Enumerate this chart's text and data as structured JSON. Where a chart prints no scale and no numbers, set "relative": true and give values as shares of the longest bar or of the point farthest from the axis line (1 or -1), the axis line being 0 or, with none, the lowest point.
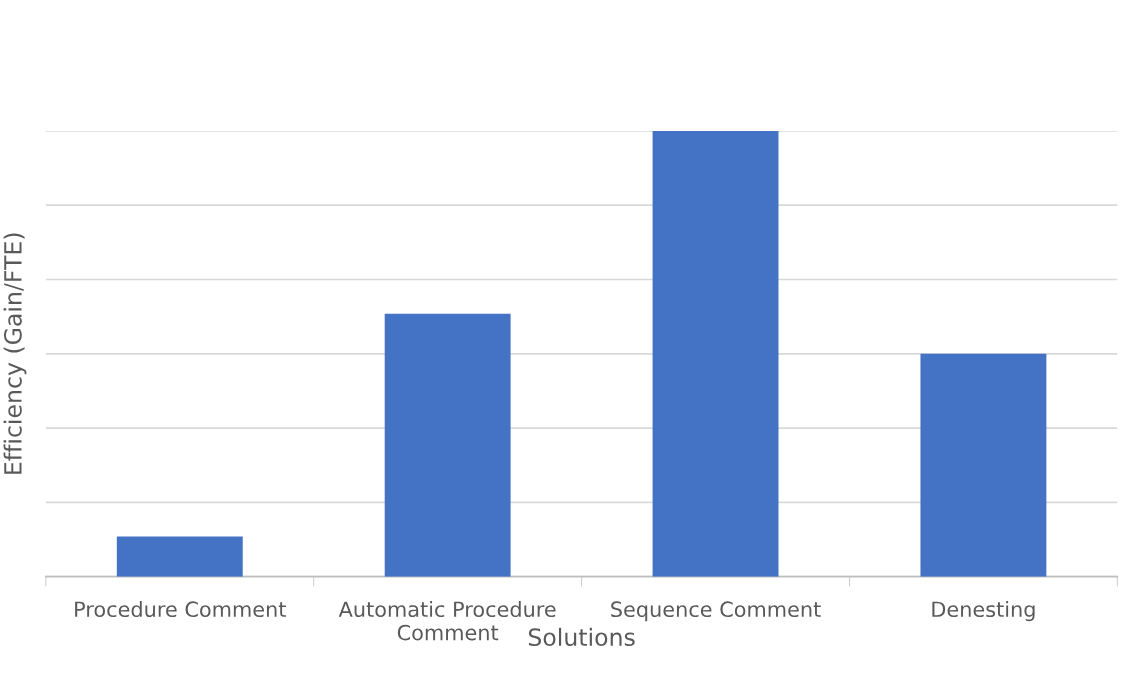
{
  "chart_data": {
    "type": "bar",
    "relative": true,
    "xlabel": "Solutions",
    "ylabel": "Efficiency (Gain/FTE)",
    "categories": [
      "Procedure Comment",
      "Automatic Procedure Comment",
      "Sequence Comment",
      "Denesting"
    ],
    "values": [
      0.09,
      0.59,
      1,
      0.5
    ],
    "color": "#4472c4",
    "grid": "y"
  }
}
